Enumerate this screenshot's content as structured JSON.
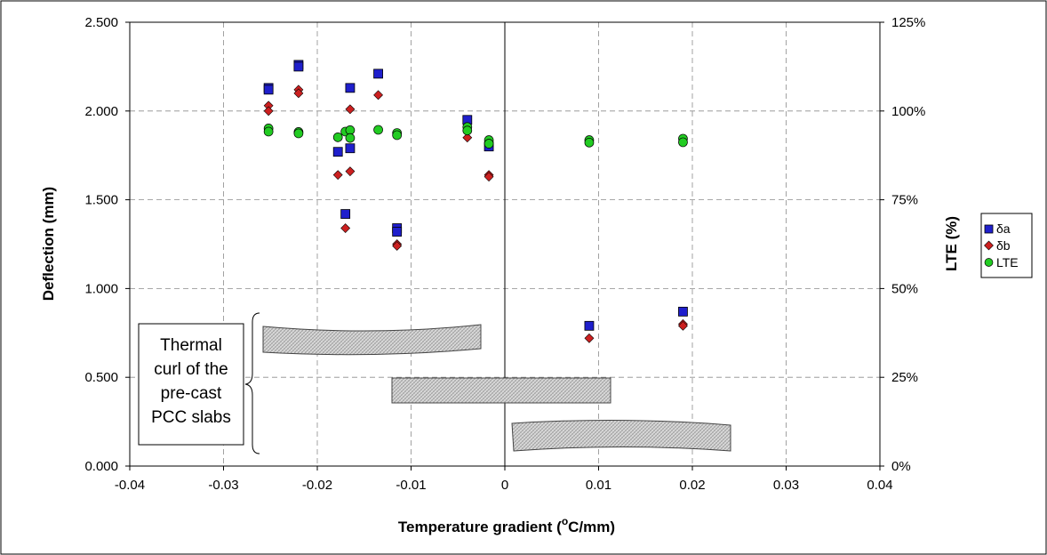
{
  "chart_data": {
    "type": "scatter",
    "xlabel_main": "Temperature gradient (",
    "xlabel_sup": "o",
    "xlabel_tail": "C/mm)",
    "ylabel": "Deflection (mm)",
    "y2label": "LTE (%)",
    "xlim": [
      -0.04,
      0.04
    ],
    "ylim": [
      0,
      2.5
    ],
    "y2lim": [
      0,
      1.25
    ],
    "x_ticks": [
      "-0.04",
      "-0.03",
      "-0.02",
      "-0.01",
      "0",
      "0.01",
      "0.02",
      "0.03",
      "0.04"
    ],
    "x_tick_values": [
      -0.04,
      -0.03,
      -0.02,
      -0.01,
      0,
      0.01,
      0.02,
      0.03,
      0.04
    ],
    "y_ticks": [
      "0.000",
      "0.500",
      "1.000",
      "1.500",
      "2.000",
      "2.500"
    ],
    "y_tick_values": [
      0,
      0.5,
      1.0,
      1.5,
      2.0,
      2.5
    ],
    "y2_ticks": [
      "0%",
      "25%",
      "50%",
      "75%",
      "100%",
      "125%"
    ],
    "y2_tick_values": [
      0,
      0.25,
      0.5,
      0.75,
      1.0,
      1.25
    ],
    "grid": true,
    "legend_position": "right",
    "series": [
      {
        "name": "δa",
        "marker": "square",
        "color": "#1f1fcc",
        "axis": "left",
        "points": [
          [
            -0.0252,
            2.13
          ],
          [
            -0.0252,
            2.12
          ],
          [
            -0.022,
            2.26
          ],
          [
            -0.022,
            2.25
          ],
          [
            -0.0178,
            1.77
          ],
          [
            -0.017,
            1.42
          ],
          [
            -0.0165,
            2.13
          ],
          [
            -0.0165,
            1.79
          ],
          [
            -0.0135,
            2.21
          ],
          [
            -0.0115,
            1.34
          ],
          [
            -0.0115,
            1.32
          ],
          [
            -0.004,
            1.95
          ],
          [
            -0.0017,
            1.8
          ],
          [
            0.009,
            0.79
          ],
          [
            0.019,
            0.87
          ]
        ]
      },
      {
        "name": "δb",
        "marker": "diamond",
        "color": "#cc2020",
        "axis": "left",
        "points": [
          [
            -0.0252,
            2.03
          ],
          [
            -0.0252,
            2.0
          ],
          [
            -0.022,
            2.12
          ],
          [
            -0.022,
            2.1
          ],
          [
            -0.0178,
            1.64
          ],
          [
            -0.017,
            1.34
          ],
          [
            -0.0165,
            2.01
          ],
          [
            -0.0165,
            1.66
          ],
          [
            -0.0135,
            2.09
          ],
          [
            -0.0115,
            1.25
          ],
          [
            -0.0115,
            1.24
          ],
          [
            -0.004,
            1.85
          ],
          [
            -0.0017,
            1.64
          ],
          [
            -0.0017,
            1.63
          ],
          [
            0.009,
            0.72
          ],
          [
            0.019,
            0.8
          ],
          [
            0.019,
            0.79
          ]
        ]
      },
      {
        "name": "LTE",
        "marker": "circle",
        "color": "#22cc22",
        "axis": "right",
        "points": [
          [
            -0.0252,
            0.951
          ],
          [
            -0.0252,
            0.942
          ],
          [
            -0.022,
            0.941
          ],
          [
            -0.022,
            0.937
          ],
          [
            -0.0178,
            0.926
          ],
          [
            -0.017,
            0.942
          ],
          [
            -0.0165,
            0.946
          ],
          [
            -0.0165,
            0.924
          ],
          [
            -0.0135,
            0.947
          ],
          [
            -0.0115,
            0.938
          ],
          [
            -0.0115,
            0.932
          ],
          [
            -0.004,
            0.955
          ],
          [
            -0.004,
            0.945
          ],
          [
            -0.0017,
            0.918
          ],
          [
            -0.0017,
            0.908
          ],
          [
            0.009,
            0.918
          ],
          [
            0.009,
            0.911
          ],
          [
            0.019,
            0.922
          ],
          [
            0.019,
            0.912
          ]
        ]
      }
    ],
    "annotation": {
      "lines": [
        "Thermal",
        "curl of the",
        "pre-cast",
        "PCC slabs"
      ]
    }
  },
  "colors": {
    "grid": "#8c8c8c",
    "slab_fill": "#d4d4d4",
    "slab_stroke": "#444444"
  }
}
